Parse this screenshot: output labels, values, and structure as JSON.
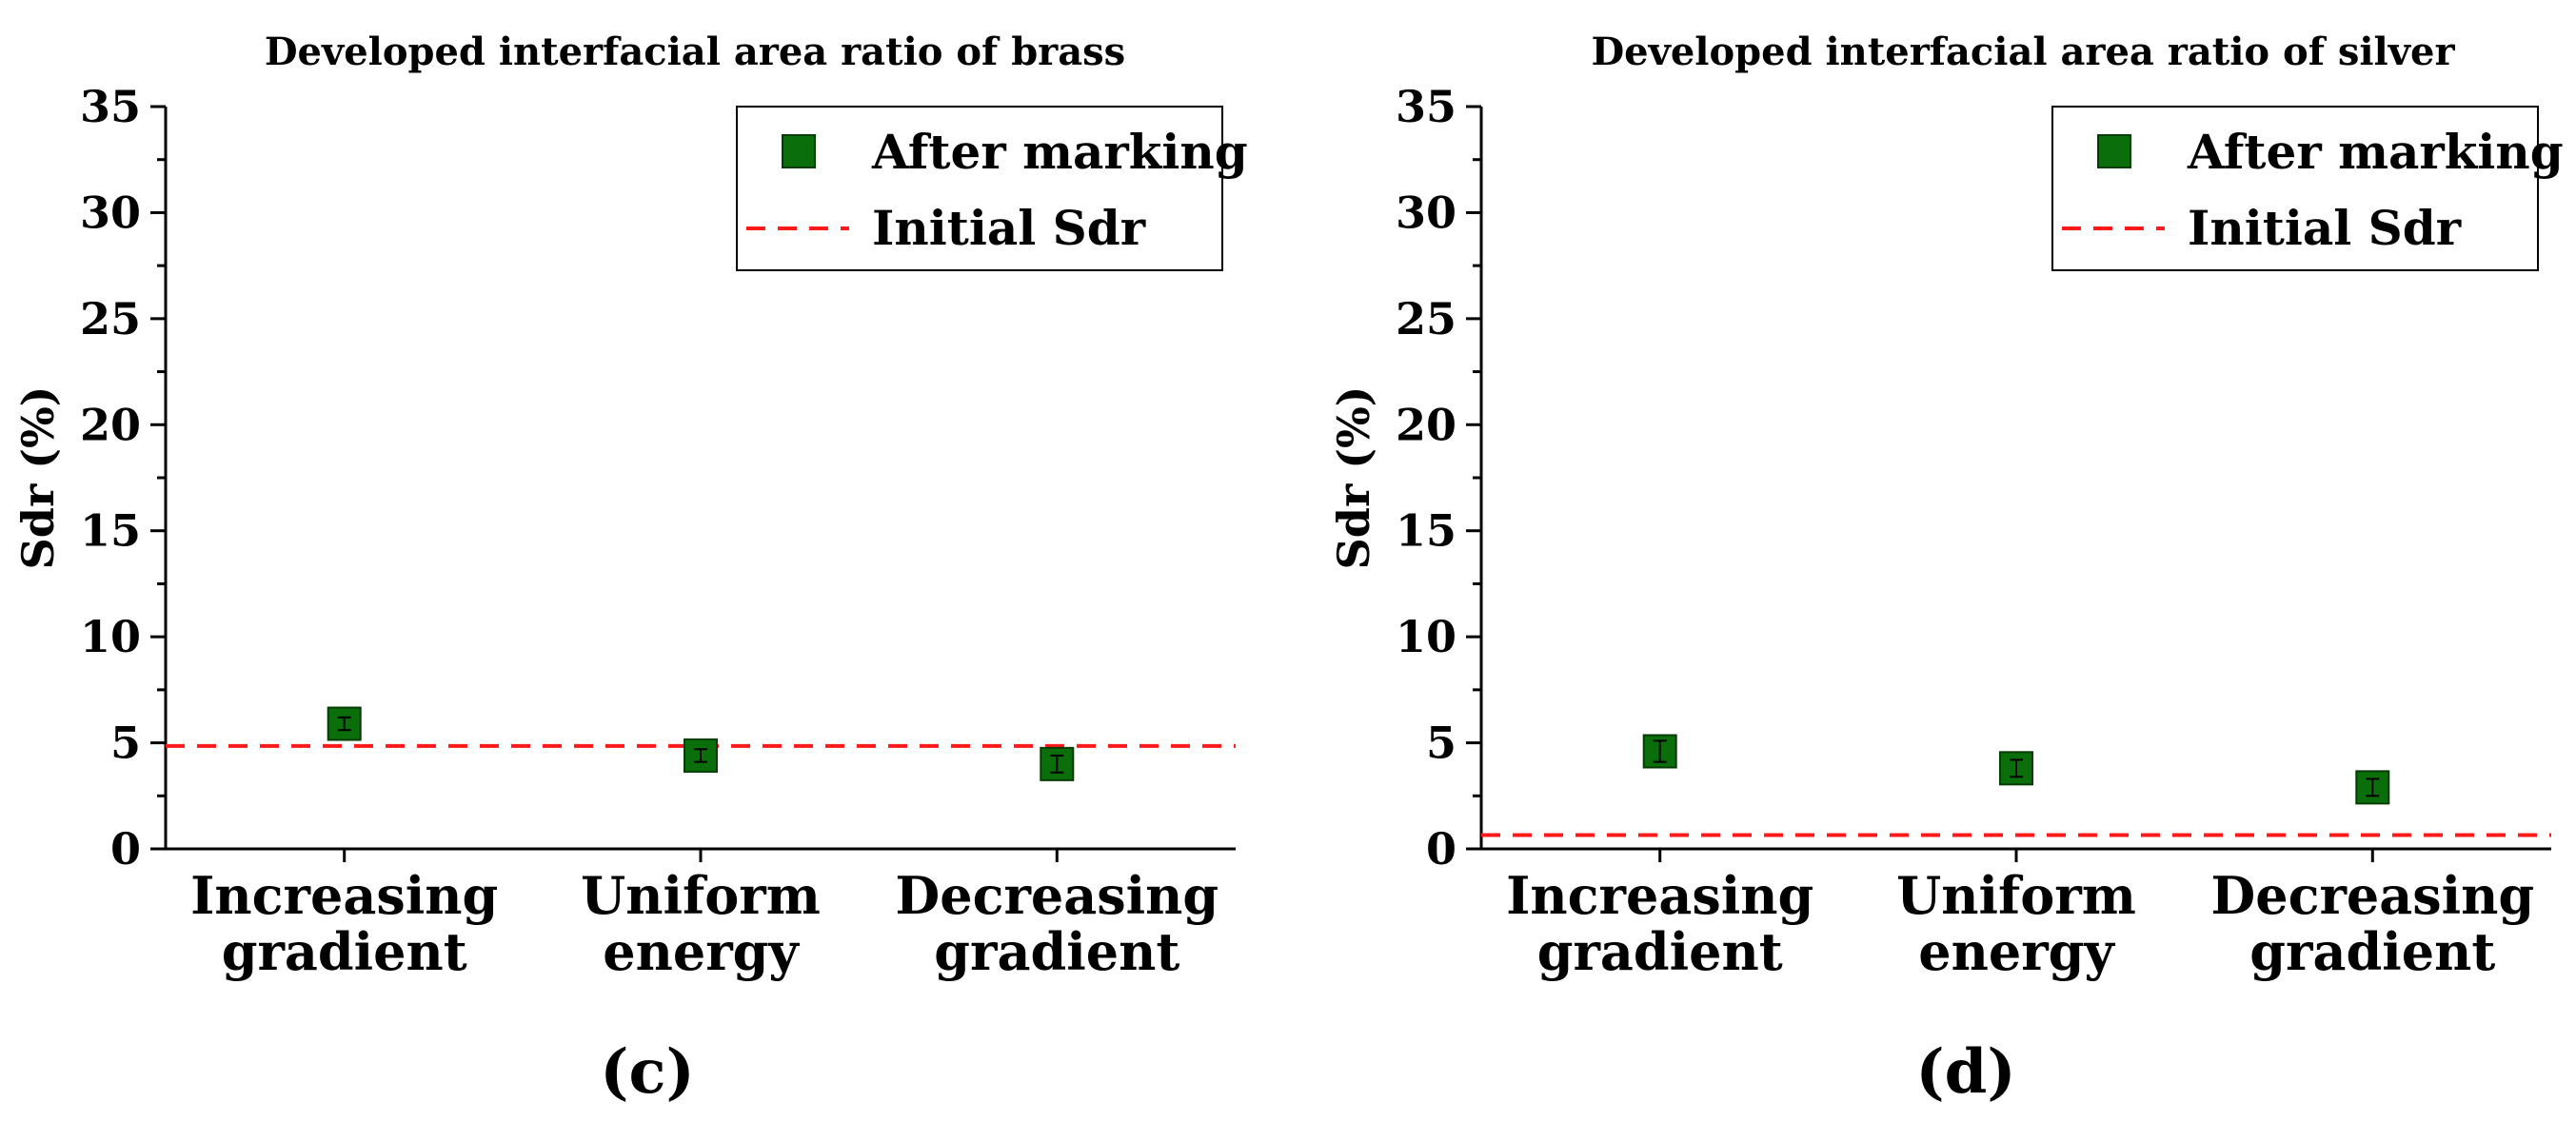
{
  "chart_data": [
    {
      "type": "scatter",
      "panel_label": "c",
      "title": "Developed interfacial area ratio of brass",
      "xlabel": "",
      "ylabel": "Sdr (%)",
      "ylim": [
        0,
        35
      ],
      "yticks": [
        "0",
        "5",
        "10",
        "15",
        "20",
        "25",
        "30",
        "35"
      ],
      "categories": [
        {
          "line1": "Increasing",
          "line2": "gradient"
        },
        {
          "line1": "Uniform",
          "line2": "energy"
        },
        {
          "line1": "Decreasing",
          "line2": "gradient"
        }
      ],
      "series": [
        {
          "name": "After marking",
          "values": [
            5.9,
            4.4,
            4.0
          ],
          "errors": [
            0.3,
            0.3,
            0.4
          ],
          "color": "#0a6e0a"
        }
      ],
      "reference_line": {
        "name": "Initial Sdr",
        "value": 4.85,
        "color": "#ff1a1a"
      },
      "legend": {
        "position": "top-right",
        "entries": [
          "After marking",
          "Initial Sdr"
        ]
      }
    },
    {
      "type": "scatter",
      "panel_label": "d",
      "title": "Developed interfacial area ratio of silver",
      "xlabel": "",
      "ylabel": "Sdr (%)",
      "ylim": [
        0,
        35
      ],
      "yticks": [
        "0",
        "5",
        "10",
        "15",
        "20",
        "25",
        "30",
        "35"
      ],
      "categories": [
        {
          "line1": "Increasing",
          "line2": "gradient"
        },
        {
          "line1": "Uniform",
          "line2": "energy"
        },
        {
          "line1": "Decreasing",
          "line2": "gradient"
        }
      ],
      "series": [
        {
          "name": "After marking",
          "values": [
            4.6,
            3.8,
            2.9
          ],
          "errors": [
            0.5,
            0.4,
            0.4
          ],
          "color": "#0a6e0a"
        }
      ],
      "reference_line": {
        "name": "Initial Sdr",
        "value": 0.65,
        "color": "#ff1a1a"
      },
      "legend": {
        "position": "top-right",
        "entries": [
          "After marking",
          "Initial Sdr"
        ]
      }
    }
  ]
}
